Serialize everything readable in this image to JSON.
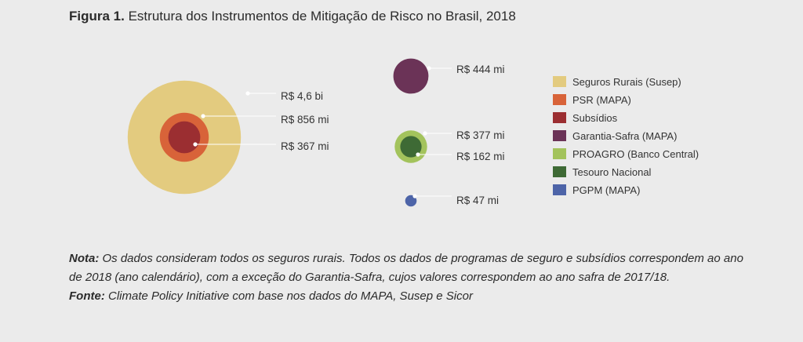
{
  "figure": {
    "title_lead": "Figura 1.",
    "title_text": "Estrutura dos Instrumentos de Mitigação de Risco no Brasil, 2018"
  },
  "chart_data": {
    "type": "bubble",
    "title": "Estrutura dos Instrumentos de Mitigação de Risco no Brasil, 2018",
    "groups": [
      {
        "name": "Seguros Rurais (Susep)",
        "value_label": "R$ 4,6 bi",
        "value": 4600,
        "color": "#e3cb7f"
      },
      {
        "name": "PSR (MAPA)",
        "value_label": "R$ 856 mi",
        "value": 856,
        "color": "#d86339"
      },
      {
        "name": "Subsídios",
        "value_label": "R$ 367 mi",
        "value": 367,
        "color": "#9b2e31"
      },
      {
        "name": "Garantia-Safra (MAPA)",
        "value_label": "R$ 444 mi",
        "value": 444,
        "color": "#6b3357"
      },
      {
        "name": "PROAGRO (Banco Central)",
        "value_label": "R$ 377 mi",
        "value": 377,
        "color": "#a3c35c"
      },
      {
        "name": "Tesouro Nacional",
        "value_label": "R$ 162 mi",
        "value": 162,
        "color": "#3e6a35"
      },
      {
        "name": "PGPM (MAPA)",
        "value_label": "R$ 47 mi",
        "value": 47,
        "color": "#4d64a8"
      }
    ],
    "unit": "R$ milhões"
  },
  "note": {
    "note_lead": "Nota:",
    "note_text": "Os dados consideram todos os seguros rurais. Todos os dados de programas de seguro e subsídios correspondem ao ano de 2018 (ano calendário), com a exceção do Garantia-Safra, cujos valores correspondem ao ano safra de 2017/18.",
    "source_lead": "Fonte:",
    "source_text": "Climate Policy Initiative com base nos dados do MAPA, Susep e Sicor"
  }
}
